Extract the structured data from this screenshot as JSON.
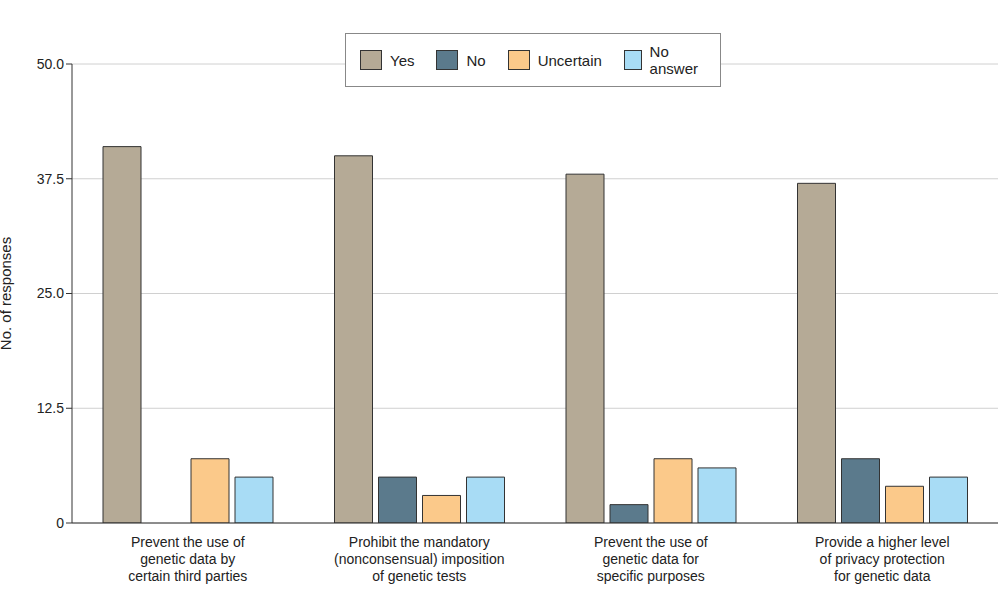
{
  "chart_data": {
    "type": "bar",
    "y_label": "No. of responses",
    "categories": [
      "Prevent the use of\ngenetic data by\ncertain third parties",
      "Prohibit the mandatory\n(nonconsensual) imposition\nof genetic tests",
      "Prevent the use of\ngenetic data for\nspecific purposes",
      "Provide a higher level\nof privacy protection\nfor genetic data"
    ],
    "series": [
      {
        "name": "Yes",
        "color": "#b5aa96",
        "values": [
          41,
          40,
          38,
          37
        ]
      },
      {
        "name": "No",
        "color": "#5b7a8c",
        "values": [
          0,
          5,
          2,
          7
        ]
      },
      {
        "name": "Uncertain",
        "color": "#fbc98a",
        "values": [
          7,
          3,
          7,
          4
        ]
      },
      {
        "name": "No answer",
        "color": "#a8dcf5",
        "values": [
          5,
          5,
          6,
          5
        ]
      }
    ],
    "ylim": [
      0,
      50
    ],
    "yticks": [
      0,
      12.5,
      {
        "value": 25,
        "label": "25.0"
      },
      37.5,
      {
        "value": 50,
        "label": "50.0"
      }
    ],
    "grid": true,
    "legend": "top"
  }
}
